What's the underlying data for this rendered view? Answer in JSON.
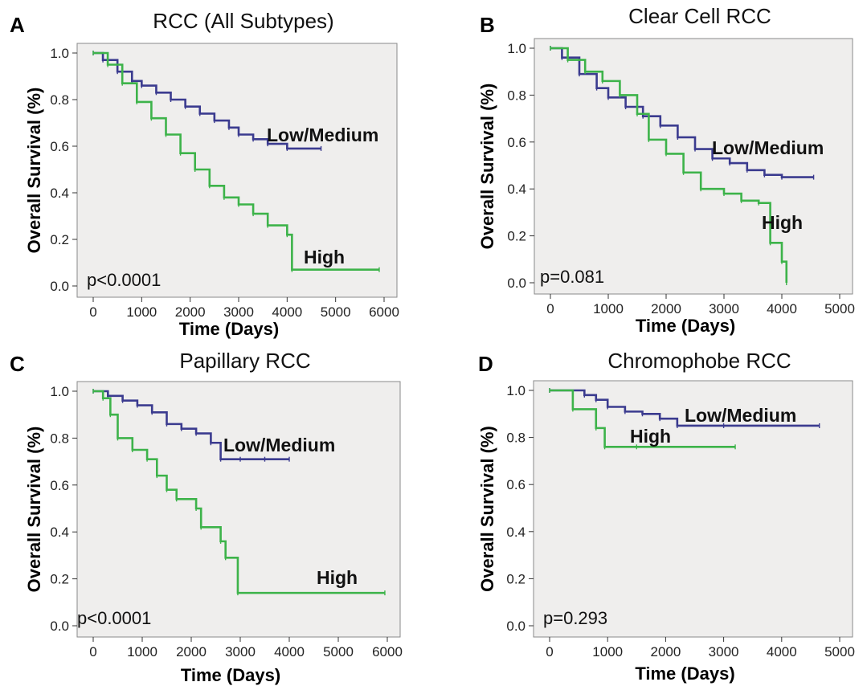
{
  "chart_data": [
    {
      "panel_letter": "A",
      "type": "line",
      "title": "RCC (All Subtypes)",
      "xlabel": "Time (Days)",
      "ylabel": "Overall Survival (%)",
      "xlim": [
        0,
        6000
      ],
      "ylim": [
        0.0,
        1.0
      ],
      "xticks": [
        0,
        1000,
        2000,
        3000,
        4000,
        5000,
        6000
      ],
      "yticks": [
        0.0,
        0.2,
        0.4,
        0.6,
        0.8,
        1.0
      ],
      "annotation": "p<0.0001",
      "series": [
        {
          "name": "Low/Medium",
          "color": "#3b3b8f",
          "x": [
            0,
            200,
            500,
            800,
            1000,
            1300,
            1600,
            1900,
            2200,
            2500,
            2800,
            3000,
            3300,
            3600,
            4000,
            4700
          ],
          "y": [
            1.0,
            0.97,
            0.92,
            0.88,
            0.86,
            0.83,
            0.8,
            0.77,
            0.74,
            0.71,
            0.68,
            0.65,
            0.63,
            0.61,
            0.59,
            0.59
          ]
        },
        {
          "name": "High",
          "color": "#3db34a",
          "x": [
            0,
            300,
            600,
            900,
            1200,
            1500,
            1800,
            2100,
            2400,
            2700,
            3000,
            3300,
            3600,
            4000,
            4100,
            5900
          ],
          "y": [
            1.0,
            0.95,
            0.87,
            0.79,
            0.72,
            0.65,
            0.57,
            0.5,
            0.43,
            0.38,
            0.35,
            0.31,
            0.26,
            0.22,
            0.07,
            0.07
          ]
        }
      ]
    },
    {
      "panel_letter": "B",
      "type": "line",
      "title": "Clear Cell RCC",
      "xlabel": "Time (Days)",
      "ylabel": "Overall Survival (%)",
      "xlim": [
        0,
        5000
      ],
      "ylim": [
        0.0,
        1.0
      ],
      "xticks": [
        0,
        1000,
        2000,
        3000,
        4000,
        5000
      ],
      "yticks": [
        0.0,
        0.2,
        0.4,
        0.6,
        0.8,
        1.0
      ],
      "annotation": "p=0.081",
      "series": [
        {
          "name": "Low/Medium",
          "color": "#3b3b8f",
          "x": [
            0,
            200,
            500,
            800,
            1000,
            1300,
            1600,
            1900,
            2200,
            2500,
            2800,
            3100,
            3400,
            3700,
            4000,
            4550
          ],
          "y": [
            1.0,
            0.96,
            0.89,
            0.83,
            0.79,
            0.75,
            0.71,
            0.67,
            0.62,
            0.57,
            0.53,
            0.51,
            0.48,
            0.46,
            0.45,
            0.45
          ]
        },
        {
          "name": "High",
          "color": "#3db34a",
          "x": [
            0,
            300,
            600,
            900,
            1200,
            1500,
            1700,
            2000,
            2300,
            2600,
            3000,
            3300,
            3600,
            3800,
            4000,
            4080
          ],
          "y": [
            1.0,
            0.95,
            0.9,
            0.86,
            0.8,
            0.72,
            0.61,
            0.55,
            0.47,
            0.4,
            0.38,
            0.35,
            0.34,
            0.17,
            0.09,
            0.0
          ]
        }
      ]
    },
    {
      "panel_letter": "C",
      "type": "line",
      "title": "Papillary RCC",
      "xlabel": "Time (Days)",
      "ylabel": "Overall Survival (%)",
      "xlim": [
        0,
        6000
      ],
      "ylim": [
        0.0,
        1.0
      ],
      "xticks": [
        0,
        1000,
        2000,
        3000,
        4000,
        5000,
        6000
      ],
      "yticks": [
        0.0,
        0.2,
        0.4,
        0.6,
        0.8,
        1.0
      ],
      "annotation": "p<0.0001",
      "series": [
        {
          "name": "Low/Medium",
          "color": "#3b3b8f",
          "x": [
            0,
            300,
            600,
            900,
            1200,
            1500,
            1800,
            2100,
            2400,
            2600,
            3000,
            3500,
            4000
          ],
          "y": [
            1.0,
            0.98,
            0.96,
            0.94,
            0.91,
            0.86,
            0.84,
            0.82,
            0.78,
            0.71,
            0.71,
            0.71,
            0.71
          ]
        },
        {
          "name": "High",
          "color": "#3db34a",
          "x": [
            0,
            200,
            350,
            500,
            800,
            1100,
            1300,
            1500,
            1700,
            2100,
            2200,
            2600,
            2700,
            2950,
            5950
          ],
          "y": [
            1.0,
            0.97,
            0.9,
            0.8,
            0.75,
            0.71,
            0.64,
            0.58,
            0.54,
            0.5,
            0.42,
            0.36,
            0.29,
            0.14,
            0.14
          ]
        }
      ]
    },
    {
      "panel_letter": "D",
      "type": "line",
      "title": "Chromophobe RCC",
      "xlabel": "Time (Days)",
      "ylabel": "Overall Survival (%)",
      "xlim": [
        0,
        5000
      ],
      "ylim": [
        0.0,
        1.0
      ],
      "xticks": [
        0,
        1000,
        2000,
        3000,
        4000,
        5000
      ],
      "yticks": [
        0.0,
        0.2,
        0.4,
        0.6,
        0.8,
        1.0
      ],
      "annotation": "p=0.293",
      "series": [
        {
          "name": "Low/Medium",
          "color": "#3b3b8f",
          "x": [
            0,
            600,
            800,
            1000,
            1300,
            1600,
            1900,
            2200,
            3000,
            4650
          ],
          "y": [
            1.0,
            0.98,
            0.96,
            0.93,
            0.91,
            0.9,
            0.88,
            0.85,
            0.85,
            0.85
          ]
        },
        {
          "name": "High",
          "color": "#3db34a",
          "x": [
            0,
            400,
            800,
            950,
            1500,
            3200
          ],
          "y": [
            1.0,
            0.92,
            0.84,
            0.76,
            0.76,
            0.76
          ]
        }
      ]
    }
  ]
}
